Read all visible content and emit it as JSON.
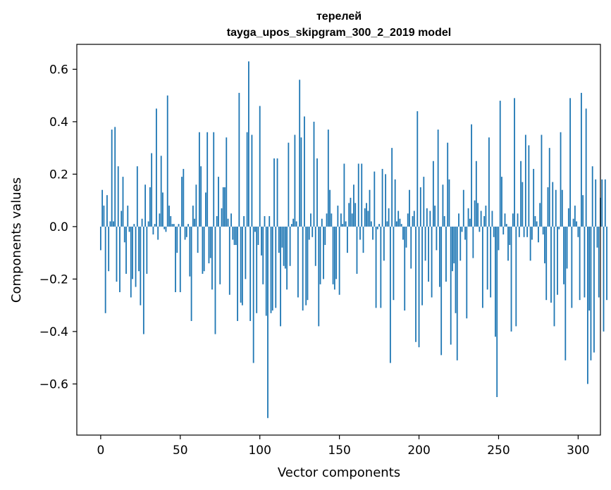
{
  "chart_data": {
    "type": "bar",
    "title_line1": "терелей",
    "title_line2": "tayga_upos_skipgram_300_2_2019 model",
    "xlabel": "Vector components",
    "ylabel": "Components values",
    "xlim": [
      -15,
      314
    ],
    "ylim": [
      -0.795,
      0.695
    ],
    "xticks": [
      {
        "value": 0,
        "label": "0"
      },
      {
        "value": 50,
        "label": "50"
      },
      {
        "value": 100,
        "label": "100"
      },
      {
        "value": 150,
        "label": "150"
      },
      {
        "value": 200,
        "label": "200"
      },
      {
        "value": 250,
        "label": "250"
      },
      {
        "value": 300,
        "label": "300"
      }
    ],
    "yticks": [
      {
        "value": -0.6,
        "label": "−0.6"
      },
      {
        "value": -0.4,
        "label": "−0.4"
      },
      {
        "value": -0.2,
        "label": "−0.2"
      },
      {
        "value": 0.0,
        "label": "0.0"
      },
      {
        "value": 0.2,
        "label": "0.2"
      },
      {
        "value": 0.4,
        "label": "0.4"
      },
      {
        "value": 0.6,
        "label": "0.6"
      }
    ],
    "bar_color": "#1f77b4",
    "values": [
      -0.09,
      0.14,
      0.08,
      -0.33,
      0.12,
      -0.17,
      0.02,
      0.37,
      0.02,
      0.38,
      -0.21,
      0.23,
      -0.25,
      0.06,
      0.19,
      -0.06,
      -0.18,
      0.08,
      -0.02,
      -0.27,
      -0.2,
      0.01,
      -0.23,
      0.23,
      -0.17,
      -0.3,
      0.03,
      -0.41,
      0.16,
      -0.18,
      0.02,
      0.15,
      0.28,
      -0.03,
      0.01,
      0.45,
      -0.05,
      0.05,
      0.27,
      0.13,
      -0.01,
      -0.02,
      0.5,
      0.08,
      0.04,
      0.01,
      0.01,
      -0.25,
      -0.1,
      0.01,
      -0.25,
      0.19,
      0.22,
      -0.05,
      -0.04,
      0.01,
      -0.19,
      -0.36,
      0.08,
      0.03,
      0.16,
      -0.1,
      0.36,
      0.23,
      -0.18,
      -0.17,
      0.13,
      0.36,
      -0.14,
      -0.12,
      -0.24,
      0.36,
      -0.41,
      0.04,
      0.19,
      -0.22,
      0.07,
      0.15,
      0.15,
      0.34,
      0.03,
      -0.26,
      0.05,
      -0.05,
      -0.07,
      -0.07,
      -0.36,
      0.51,
      -0.29,
      -0.3,
      0.04,
      -0.2,
      0.36,
      0.63,
      -0.36,
      0.35,
      -0.52,
      -0.02,
      -0.33,
      -0.07,
      0.46,
      -0.11,
      -0.22,
      0.04,
      -0.34,
      -0.73,
      0.04,
      -0.33,
      -0.32,
      0.26,
      -0.31,
      0.26,
      -0.1,
      -0.38,
      -0.08,
      -0.15,
      -0.16,
      -0.24,
      0.32,
      -0.15,
      0.01,
      0.03,
      0.35,
      0.02,
      -0.27,
      0.56,
      0.34,
      -0.32,
      0.42,
      -0.3,
      -0.28,
      -0.05,
      0.05,
      -0.04,
      0.4,
      -0.15,
      0.26,
      -0.38,
      -0.22,
      0.03,
      -0.2,
      -0.07,
      0.05,
      0.37,
      0.14,
      0.05,
      -0.22,
      -0.24,
      -0.2,
      0.08,
      -0.26,
      0.05,
      0.01,
      0.24,
      0.02,
      -0.1,
      0.09,
      0.11,
      0.05,
      0.16,
      0.09,
      -0.18,
      0.24,
      -0.05,
      0.24,
      -0.1,
      0.07,
      0.09,
      0.06,
      0.14,
      0.02,
      -0.05,
      0.21,
      -0.31,
      -0.01,
      0.01,
      -0.31,
      0.22,
      -0.13,
      0.2,
      0.02,
      0.07,
      -0.52,
      0.3,
      -0.28,
      0.18,
      0.02,
      0.06,
      0.03,
      0.01,
      -0.05,
      -0.32,
      -0.08,
      0.05,
      0.14,
      -0.16,
      0.04,
      0.06,
      -0.44,
      0.44,
      -0.46,
      0.15,
      -0.3,
      0.19,
      -0.13,
      0.07,
      -0.21,
      0.06,
      -0.27,
      0.25,
      0.08,
      -0.09,
      0.37,
      -0.23,
      -0.49,
      0.16,
      0.04,
      -0.21,
      0.32,
      0.18,
      -0.45,
      -0.17,
      -0.14,
      -0.33,
      -0.51,
      0.05,
      -0.13,
      -0.02,
      0.14,
      -0.05,
      -0.35,
      0.07,
      0.03,
      0.39,
      -0.12,
      0.1,
      0.25,
      0.09,
      -0.02,
      0.06,
      -0.31,
      0.04,
      0.08,
      -0.24,
      0.34,
      -0.27,
      0.06,
      -0.04,
      -0.42,
      -0.65,
      -0.09,
      0.48,
      0.19,
      -0.03,
      0.05,
      0.01,
      -0.13,
      -0.07,
      -0.4,
      0.05,
      0.49,
      -0.38,
      0.05,
      -0.04,
      0.25,
      0.17,
      -0.04,
      0.35,
      -0.04,
      0.31,
      -0.13,
      -0.05,
      0.22,
      0.04,
      0.02,
      -0.06,
      0.09,
      0.35,
      -0.03,
      -0.14,
      -0.28,
      0.15,
      0.3,
      -0.29,
      0.17,
      -0.38,
      0.14,
      -0.26,
      -0.01,
      0.36,
      0.14,
      -0.22,
      -0.51,
      -0.16,
      0.07,
      0.49,
      -0.31,
      0.03,
      0.08,
      0.02,
      -0.04,
      -0.28,
      0.51,
      0.12,
      -0.27,
      0.45,
      -0.6,
      -0.32,
      -0.51,
      0.23,
      -0.48,
      0.18,
      -0.08,
      -0.27,
      0.11,
      0.18,
      -0.4,
      0.18,
      -0.28
    ]
  }
}
